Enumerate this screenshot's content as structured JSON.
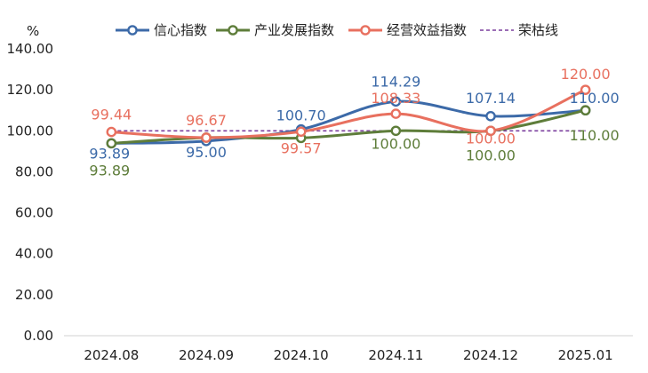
{
  "chart_data": {
    "type": "line",
    "categories": [
      "2024.08",
      "2024.09",
      "2024.10",
      "2024.11",
      "2024.12",
      "2025.01"
    ],
    "ylabel": "%",
    "ylim": [
      0,
      140
    ],
    "yticks": [
      "0.00",
      "20.00",
      "40.00",
      "60.00",
      "80.00",
      "100.00",
      "120.00",
      "140.00"
    ],
    "grid": false,
    "legend": "top-center",
    "series": [
      {
        "name": "信心指数",
        "color": "#3c6aa8",
        "values": [
          93.89,
          95.0,
          100.7,
          114.29,
          107.14,
          110.0
        ],
        "labels": [
          "93.89",
          "95.00",
          "100.70",
          "114.29",
          "107.14",
          "110.00"
        ]
      },
      {
        "name": "产业发展指数",
        "color": "#5e7d3a",
        "values": [
          93.89,
          96.67,
          96.5,
          100.0,
          100.0,
          110.0
        ],
        "labels": [
          "93.89",
          "",
          "",
          "100.00",
          "100.00",
          "110.00"
        ]
      },
      {
        "name": "经营效益指数",
        "color": "#e8705f",
        "values": [
          99.44,
          96.67,
          99.57,
          108.33,
          100.0,
          120.0
        ],
        "labels": [
          "99.44",
          "96.67",
          "99.57",
          "108.33",
          "100.00",
          "120.00"
        ]
      },
      {
        "name": "荣枯线",
        "color": "#7b3f9e",
        "dashed": true,
        "values": [
          100,
          100,
          100,
          100,
          100,
          100
        ],
        "labels": []
      }
    ]
  }
}
